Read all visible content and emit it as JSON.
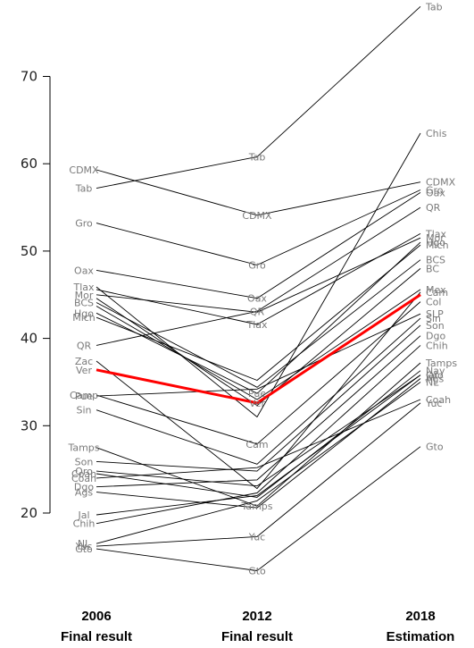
{
  "chart_data": {
    "type": "line",
    "x": [
      "2006",
      "2012",
      "2018"
    ],
    "x_subtitles": [
      "Final result",
      "Final result",
      "Estimation"
    ],
    "yticks": [
      20,
      30,
      40,
      50,
      60,
      70
    ],
    "ylim": [
      12,
      79
    ],
    "grid": false,
    "highlight": {
      "index": 14,
      "color": "#ff0000"
    },
    "line_color": "#000000",
    "series": [
      {
        "name": "Tab",
        "values": [
          57.2,
          60.8,
          78.0
        ],
        "labels": [
          "Tab",
          "Tab",
          "Tab"
        ]
      },
      {
        "name": "CDMX",
        "values": [
          59.3,
          54.1,
          57.9
        ],
        "labels": [
          "CDMX",
          "CDMX",
          "CDMX"
        ]
      },
      {
        "name": "Gro",
        "values": [
          53.2,
          48.4,
          57.0
        ],
        "labels": [
          "Gro",
          "Gro",
          "Gro"
        ]
      },
      {
        "name": "Oax",
        "values": [
          47.8,
          44.6,
          56.7
        ],
        "labels": [
          "Oax",
          "Oax",
          "Oax"
        ]
      },
      {
        "name": "Chis",
        "values": [
          45.9,
          31.0,
          63.5
        ],
        "labels": [
          "Tlax",
          "",
          "Chis"
        ]
      },
      {
        "name": "Tlax",
        "values": [
          45.6,
          41.6,
          52.0
        ],
        "labels": [
          "",
          "Tlax",
          "Tlax"
        ]
      },
      {
        "name": "Mor",
        "values": [
          45.0,
          43.0,
          51.5
        ],
        "labels": [
          "Mor",
          "",
          "Mor"
        ]
      },
      {
        "name": "QR",
        "values": [
          39.2,
          43.1,
          55.0
        ],
        "labels": [
          "QR",
          "QR",
          "QR"
        ]
      },
      {
        "name": "Mich",
        "values": [
          42.4,
          35.2,
          50.7
        ],
        "labels": [
          "Mich",
          "",
          "Mich"
        ]
      },
      {
        "name": "Hgo",
        "values": [
          42.9,
          33.7,
          51.0
        ],
        "labels": [
          "Hgo",
          "Pue",
          "Hgo"
        ]
      },
      {
        "name": "BCS",
        "values": [
          44.1,
          34.4,
          49.0
        ],
        "labels": [
          "BCS",
          "",
          "BCS"
        ]
      },
      {
        "name": "BC",
        "values": [
          44.6,
          32.3,
          48.0
        ],
        "labels": [
          "",
          "",
          "BC"
        ]
      },
      {
        "name": "Mex",
        "values": [
          43.7,
          33.0,
          45.6
        ],
        "labels": [
          "",
          "",
          "Mex"
        ]
      },
      {
        "name": "Zac",
        "values": [
          37.4,
          22.8,
          45.3
        ],
        "labels": [
          "Zac",
          "",
          "Cam"
        ]
      },
      {
        "name": "Ver",
        "values": [
          36.4,
          32.6,
          45.0
        ],
        "labels": [
          "Ver",
          "Ver",
          ""
        ]
      },
      {
        "name": "Col",
        "values": [
          33.5,
          27.9,
          44.2
        ],
        "labels": [
          "Camp",
          "Cam",
          "Col"
        ]
      },
      {
        "name": "Pue",
        "values": [
          33.4,
          34.2,
          42.8
        ],
        "labels": [
          "Pue",
          "",
          "SLP"
        ]
      },
      {
        "name": "Sin",
        "values": [
          31.8,
          25.6,
          42.3
        ],
        "labels": [
          "Sin",
          "",
          "Sin"
        ]
      },
      {
        "name": "Son",
        "values": [
          25.9,
          24.8,
          41.5
        ],
        "labels": [
          "Son",
          "",
          "Son"
        ]
      },
      {
        "name": "Dgo",
        "values": [
          23.0,
          23.8,
          40.3
        ],
        "labels": [
          "Dgo",
          "",
          "Dgo"
        ]
      },
      {
        "name": "Chih",
        "values": [
          18.8,
          22.3,
          39.2
        ],
        "labels": [
          "Chih",
          "",
          "Chih"
        ]
      },
      {
        "name": "Tamps",
        "values": [
          27.5,
          20.8,
          37.2
        ],
        "labels": [
          "Tamps",
          "Tamps",
          "Tamps"
        ]
      },
      {
        "name": "Nay",
        "values": [
          24.5,
          21.8,
          36.3
        ],
        "labels": [
          "Coah",
          "",
          "Nay"
        ]
      },
      {
        "name": "Jal",
        "values": [
          19.8,
          22.0,
          35.8
        ],
        "labels": [
          "Jal",
          "",
          "Jal"
        ]
      },
      {
        "name": "NL",
        "values": [
          16.5,
          21.4,
          35.0
        ],
        "labels": [
          "NL",
          "",
          "NL"
        ]
      },
      {
        "name": "Ags",
        "values": [
          22.4,
          20.6,
          35.4
        ],
        "labels": [
          "Ags",
          "",
          "Ags"
        ]
      },
      {
        "name": "Qro",
        "values": [
          24.8,
          23.1,
          35.8
        ],
        "labels": [
          "Qro",
          "",
          "Qro"
        ]
      },
      {
        "name": "Coah",
        "values": [
          24.0,
          25.2,
          33.0
        ],
        "labels": [
          "Coah",
          "",
          "Coah"
        ]
      },
      {
        "name": "Yuc",
        "values": [
          16.2,
          17.3,
          32.6
        ],
        "labels": [
          "Yuc",
          "Yuc",
          "Yuc"
        ]
      },
      {
        "name": "Gto",
        "values": [
          15.9,
          13.4,
          27.6
        ],
        "labels": [
          "Gto",
          "Gto",
          "Gto"
        ]
      }
    ]
  }
}
